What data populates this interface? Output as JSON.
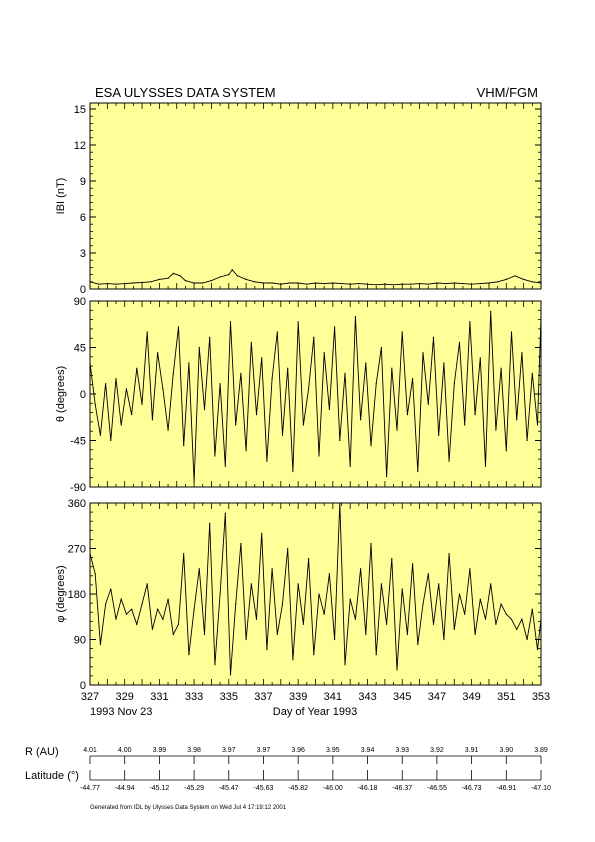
{
  "header": {
    "title": "ESA ULYSSES DATA SYSTEM",
    "instrument": "VHM/FGM"
  },
  "chart_data": [
    {
      "type": "line",
      "ylabel": "IBI (nT)",
      "ylim": [
        0,
        15.5
      ],
      "yticks": [
        "0",
        "3",
        "6",
        "9",
        "12",
        "15"
      ],
      "background": "#ffff99",
      "series_color": "#000000",
      "x": [
        327,
        327.5,
        328,
        328.5,
        329,
        329.5,
        330,
        330.5,
        331,
        331.5,
        331.8,
        332.2,
        332.5,
        333,
        333.5,
        334,
        334.5,
        335,
        335.2,
        335.5,
        336,
        336.5,
        337,
        337.5,
        338,
        338.5,
        339,
        339.5,
        340,
        340.5,
        341,
        341.5,
        342,
        342.5,
        343,
        343.5,
        344,
        344.5,
        345,
        345.5,
        346,
        346.5,
        347,
        347.5,
        348,
        348.5,
        349,
        349.5,
        350,
        350.5,
        351,
        351.5,
        352,
        352.5,
        353
      ],
      "y": [
        0.6,
        0.4,
        0.45,
        0.4,
        0.45,
        0.5,
        0.55,
        0.6,
        0.8,
        0.9,
        1.3,
        1.1,
        0.7,
        0.5,
        0.5,
        0.7,
        1.0,
        1.2,
        1.6,
        1.1,
        0.8,
        0.6,
        0.5,
        0.5,
        0.4,
        0.5,
        0.5,
        0.4,
        0.5,
        0.45,
        0.5,
        0.45,
        0.4,
        0.45,
        0.4,
        0.35,
        0.4,
        0.35,
        0.4,
        0.4,
        0.45,
        0.4,
        0.5,
        0.45,
        0.5,
        0.45,
        0.4,
        0.45,
        0.5,
        0.6,
        0.8,
        1.1,
        0.8,
        0.6,
        0.5
      ]
    },
    {
      "type": "line",
      "ylabel": "θ (degrees)",
      "ylim": [
        -90,
        90
      ],
      "yticks": [
        "-90",
        "-45",
        "0",
        "45",
        "90"
      ],
      "background": "#ffff99",
      "series_color": "#000000",
      "x": [
        327,
        327.3,
        327.6,
        327.9,
        328.2,
        328.5,
        328.8,
        329.1,
        329.4,
        329.7,
        330,
        330.3,
        330.6,
        330.9,
        331.2,
        331.5,
        331.8,
        332.1,
        332.4,
        332.7,
        333,
        333.3,
        333.6,
        333.9,
        334.2,
        334.5,
        334.8,
        335.1,
        335.4,
        335.7,
        336,
        336.3,
        336.6,
        336.9,
        337.2,
        337.5,
        337.8,
        338.1,
        338.4,
        338.7,
        339,
        339.3,
        339.6,
        339.9,
        340.2,
        340.5,
        340.8,
        341.1,
        341.4,
        341.7,
        342,
        342.3,
        342.6,
        342.9,
        343.2,
        343.5,
        343.8,
        344.1,
        344.4,
        344.7,
        345,
        345.3,
        345.6,
        345.9,
        346.2,
        346.5,
        346.8,
        347.1,
        347.4,
        347.7,
        348,
        348.3,
        348.6,
        348.9,
        349.2,
        349.5,
        349.8,
        350.1,
        350.4,
        350.7,
        351,
        351.3,
        351.6,
        351.9,
        352.2,
        352.5,
        352.8,
        353
      ],
      "y": [
        30,
        -10,
        -40,
        10,
        -45,
        15,
        -30,
        5,
        -20,
        25,
        -10,
        60,
        -25,
        40,
        5,
        -35,
        20,
        65,
        -50,
        30,
        -85,
        45,
        -15,
        55,
        -60,
        10,
        -70,
        70,
        -30,
        20,
        -55,
        50,
        -20,
        35,
        -65,
        15,
        60,
        -40,
        25,
        -75,
        70,
        -30,
        5,
        55,
        -60,
        40,
        -15,
        65,
        -45,
        20,
        -70,
        75,
        -25,
        30,
        -50,
        10,
        45,
        -80,
        25,
        -35,
        60,
        -20,
        15,
        -75,
        40,
        -10,
        55,
        -40,
        30,
        -65,
        10,
        50,
        -30,
        70,
        -20,
        35,
        -70,
        80,
        -35,
        25,
        -55,
        60,
        -25,
        40,
        -45,
        20,
        -30,
        75
      ]
    },
    {
      "type": "line",
      "ylabel": "φ (degrees)",
      "ylim": [
        0,
        360
      ],
      "yticks": [
        "0",
        "90",
        "180",
        "270",
        "360"
      ],
      "background": "#ffff99",
      "series_color": "#000000",
      "x": [
        327,
        327.3,
        327.6,
        327.9,
        328.2,
        328.5,
        328.8,
        329.1,
        329.4,
        329.7,
        330,
        330.3,
        330.6,
        330.9,
        331.2,
        331.5,
        331.8,
        332.1,
        332.4,
        332.7,
        333,
        333.3,
        333.6,
        333.9,
        334.2,
        334.5,
        334.8,
        335.1,
        335.4,
        335.7,
        336,
        336.3,
        336.6,
        336.9,
        337.2,
        337.5,
        337.8,
        338.1,
        338.4,
        338.7,
        339,
        339.3,
        339.6,
        339.9,
        340.2,
        340.5,
        340.8,
        341.1,
        341.4,
        341.7,
        342,
        342.3,
        342.6,
        342.9,
        343.2,
        343.5,
        343.8,
        344.1,
        344.4,
        344.7,
        345,
        345.3,
        345.6,
        345.9,
        346.2,
        346.5,
        346.8,
        347.1,
        347.4,
        347.7,
        348,
        348.3,
        348.6,
        348.9,
        349.2,
        349.5,
        349.8,
        350.1,
        350.4,
        350.7,
        351,
        351.3,
        351.6,
        351.9,
        352.2,
        352.5,
        352.8,
        353
      ],
      "y": [
        260,
        220,
        80,
        160,
        190,
        130,
        170,
        140,
        150,
        120,
        160,
        200,
        110,
        150,
        130,
        170,
        100,
        120,
        260,
        60,
        150,
        230,
        100,
        320,
        40,
        180,
        340,
        20,
        160,
        280,
        90,
        200,
        130,
        300,
        70,
        230,
        100,
        160,
        270,
        50,
        200,
        120,
        250,
        60,
        180,
        140,
        220,
        90,
        360,
        40,
        170,
        130,
        230,
        100,
        280,
        60,
        200,
        120,
        250,
        30,
        190,
        100,
        240,
        80,
        160,
        220,
        120,
        200,
        90,
        260,
        110,
        180,
        140,
        230,
        100,
        170,
        130,
        200,
        120,
        160,
        140,
        130,
        110,
        130,
        90,
        150,
        70,
        130
      ]
    }
  ],
  "x_axis": {
    "ticks": [
      "327",
      "329",
      "331",
      "333",
      "335",
      "337",
      "339",
      "341",
      "343",
      "345",
      "347",
      "349",
      "351",
      "353"
    ],
    "start_date": "1993 Nov 23",
    "xlabel": "Day of Year 1993"
  },
  "ephemeris": {
    "r_label": "R (AU)",
    "r_values": [
      "4.01",
      "4.00",
      "3.99",
      "3.98",
      "3.97",
      "3.97",
      "3.96",
      "3.95",
      "3.94",
      "3.93",
      "3.92",
      "3.91",
      "3.90",
      "3.89"
    ],
    "lat_label": "Latitude (°)",
    "lat_values": [
      "-44.77",
      "-44.94",
      "-45.12",
      "-45.29",
      "-45.47",
      "-45.63",
      "-45.82",
      "-46.00",
      "-46.18",
      "-46.37",
      "-46.55",
      "-46.73",
      "-46.91",
      "-47.10"
    ]
  },
  "footer": {
    "generated": "Generated from IDL by Ulysses Data System on Wed Jul 4 17:19:12 2001"
  }
}
